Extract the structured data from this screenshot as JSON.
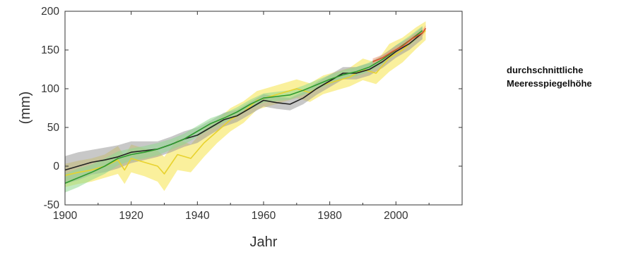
{
  "side_label": {
    "line1": "durchschnittliche",
    "line2": "Meeresspiegelhöhe"
  },
  "chart_data": {
    "type": "line",
    "title": "",
    "xlabel": "Jahr",
    "ylabel": "(mm)",
    "xlim": [
      1900,
      2020
    ],
    "ylim": [
      -50,
      200
    ],
    "xticks": [
      "1900",
      "1920",
      "1940",
      "1960",
      "1980",
      "2000"
    ],
    "yticks": [
      "200",
      "150",
      "100",
      "50",
      "0",
      "-50"
    ],
    "grid": false,
    "legend": "none",
    "series": [
      {
        "color": "#e8d22e",
        "band_color": "#f5e34a",
        "x": [
          1900,
          1904,
          1908,
          1912,
          1916,
          1918,
          1920,
          1924,
          1928,
          1930,
          1934,
          1938,
          1942,
          1946,
          1950,
          1954,
          1958,
          1962,
          1966,
          1970,
          1974,
          1978,
          1982,
          1986,
          1990,
          1994,
          1998,
          2002,
          2006,
          2009
        ],
        "values": [
          -12,
          -8,
          -5,
          0,
          8,
          -5,
          10,
          5,
          0,
          -10,
          15,
          10,
          30,
          45,
          60,
          70,
          85,
          90,
          95,
          100,
          95,
          105,
          110,
          115,
          125,
          120,
          140,
          150,
          165,
          175
        ],
        "band": [
          15,
          15,
          15,
          15,
          18,
          18,
          18,
          18,
          20,
          22,
          20,
          18,
          18,
          15,
          15,
          14,
          12,
          12,
          12,
          12,
          12,
          12,
          12,
          12,
          14,
          14,
          18,
          16,
          14,
          12
        ]
      },
      {
        "color": "#222222",
        "band_color": "#9a9a9a",
        "x": [
          1900,
          1904,
          1908,
          1912,
          1916,
          1920,
          1924,
          1928,
          1932,
          1936,
          1940,
          1944,
          1948,
          1952,
          1956,
          1960,
          1964,
          1968,
          1972,
          1976,
          1980,
          1984,
          1988,
          1992,
          1996,
          2000,
          2004,
          2008
        ],
        "values": [
          -5,
          0,
          5,
          8,
          12,
          18,
          20,
          22,
          28,
          35,
          40,
          50,
          60,
          65,
          75,
          85,
          82,
          80,
          88,
          100,
          110,
          120,
          120,
          125,
          135,
          148,
          158,
          172
        ],
        "band": [
          18,
          18,
          16,
          16,
          15,
          14,
          12,
          10,
          10,
          10,
          10,
          9,
          9,
          8,
          8,
          8,
          8,
          8,
          8,
          8,
          8,
          8,
          8,
          8,
          8,
          8,
          8,
          8
        ]
      },
      {
        "color": "#2e9a2e",
        "band_color": "#8fd88f",
        "x": [
          1900,
          1904,
          1908,
          1912,
          1916,
          1920,
          1924,
          1928,
          1932,
          1936,
          1940,
          1944,
          1948,
          1952,
          1956,
          1960,
          1964,
          1968,
          1972,
          1976,
          1980,
          1984,
          1988,
          1992,
          1996,
          2000,
          2004,
          2008
        ],
        "values": [
          -22,
          -15,
          -8,
          0,
          10,
          15,
          18,
          22,
          28,
          35,
          45,
          55,
          62,
          70,
          80,
          88,
          90,
          92,
          98,
          105,
          112,
          118,
          122,
          128,
          138,
          150,
          162,
          175
        ],
        "band": [
          12,
          12,
          10,
          10,
          9,
          8,
          8,
          8,
          7,
          7,
          7,
          7,
          6,
          6,
          6,
          6,
          6,
          6,
          6,
          6,
          6,
          6,
          6,
          6,
          6,
          6,
          6,
          6
        ]
      },
      {
        "color": "#d9502a",
        "band_color": "#f09a80",
        "x": [
          1993,
          1996,
          1999,
          2002,
          2005,
          2008,
          2009
        ],
        "values": [
          135,
          140,
          148,
          155,
          165,
          172,
          178
        ],
        "band": [
          4,
          4,
          4,
          4,
          4,
          4,
          4
        ]
      }
    ]
  }
}
